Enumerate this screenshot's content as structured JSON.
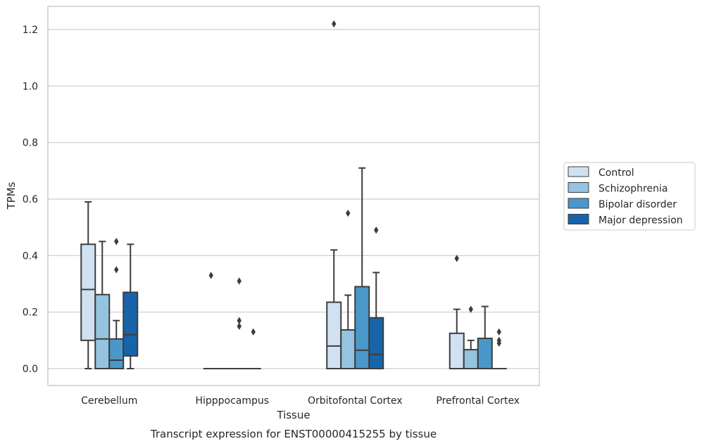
{
  "chart_data": {
    "type": "box",
    "title": "",
    "caption": "Transcript expression for ENST00000415255 by tissue",
    "xlabel": "Tissue",
    "ylabel": "TPMs",
    "ylim": [
      -0.06,
      1.28
    ],
    "yticks": [
      "0.0",
      "0.2",
      "0.4",
      "0.6",
      "0.8",
      "1.0",
      "1.2"
    ],
    "grid": "horizontal",
    "legend_position": "right",
    "categories": [
      "Cerebellum",
      "Hipppocampus",
      "Orbitofontal Cortex",
      "Prefrontal Cortex"
    ],
    "series": [
      {
        "name": "Control",
        "color": "#d0e1f2",
        "boxes": [
          {
            "q1": 0.1,
            "median": 0.28,
            "q3": 0.44,
            "whisker_low": 0.0,
            "whisker_high": 0.59,
            "outliers": []
          },
          {
            "q1": 0.0,
            "median": 0.0,
            "q3": 0.0,
            "whisker_low": 0.0,
            "whisker_high": 0.0,
            "outliers": [
              0.33
            ]
          },
          {
            "q1": 0.0,
            "median": 0.08,
            "q3": 0.235,
            "whisker_low": 0.0,
            "whisker_high": 0.42,
            "outliers": [
              1.22
            ]
          },
          {
            "q1": 0.0,
            "median": 0.0,
            "q3": 0.125,
            "whisker_low": 0.0,
            "whisker_high": 0.21,
            "outliers": [
              0.39
            ]
          }
        ]
      },
      {
        "name": "Schizophrenia",
        "color": "#94c4df",
        "boxes": [
          {
            "q1": 0.0,
            "median": 0.105,
            "q3": 0.262,
            "whisker_low": 0.0,
            "whisker_high": 0.45,
            "outliers": []
          },
          {
            "q1": 0.0,
            "median": 0.0,
            "q3": 0.0,
            "whisker_low": 0.0,
            "whisker_high": 0.0,
            "outliers": []
          },
          {
            "q1": 0.0,
            "median": 0.0,
            "q3": 0.137,
            "whisker_low": 0.0,
            "whisker_high": 0.26,
            "outliers": [
              0.55
            ]
          },
          {
            "q1": 0.0,
            "median": 0.0,
            "q3": 0.067,
            "whisker_low": 0.0,
            "whisker_high": 0.1,
            "outliers": [
              0.21
            ]
          }
        ]
      },
      {
        "name": "Bipolar disorder",
        "color": "#4a98c9",
        "boxes": [
          {
            "q1": 0.0,
            "median": 0.03,
            "q3": 0.105,
            "whisker_low": 0.0,
            "whisker_high": 0.17,
            "outliers": [
              0.35,
              0.45
            ]
          },
          {
            "q1": 0.0,
            "median": 0.0,
            "q3": 0.0,
            "whisker_low": 0.0,
            "whisker_high": 0.0,
            "outliers": [
              0.15,
              0.17,
              0.31
            ]
          },
          {
            "q1": 0.0,
            "median": 0.065,
            "q3": 0.29,
            "whisker_low": 0.0,
            "whisker_high": 0.71,
            "outliers": []
          },
          {
            "q1": 0.0,
            "median": 0.0,
            "q3": 0.107,
            "whisker_low": 0.0,
            "whisker_high": 0.22,
            "outliers": []
          }
        ]
      },
      {
        "name": "Major depression",
        "color": "#1764ab",
        "boxes": [
          {
            "q1": 0.045,
            "median": 0.12,
            "q3": 0.27,
            "whisker_low": 0.0,
            "whisker_high": 0.44,
            "outliers": []
          },
          {
            "q1": 0.0,
            "median": 0.0,
            "q3": 0.0,
            "whisker_low": 0.0,
            "whisker_high": 0.0,
            "outliers": [
              0.13
            ]
          },
          {
            "q1": 0.0,
            "median": 0.05,
            "q3": 0.18,
            "whisker_low": 0.0,
            "whisker_high": 0.34,
            "outliers": [
              0.49
            ]
          },
          {
            "q1": 0.0,
            "median": 0.0,
            "q3": 0.0,
            "whisker_low": 0.0,
            "whisker_high": 0.0,
            "outliers": [
              0.09,
              0.1,
              0.13
            ]
          }
        ]
      }
    ]
  }
}
